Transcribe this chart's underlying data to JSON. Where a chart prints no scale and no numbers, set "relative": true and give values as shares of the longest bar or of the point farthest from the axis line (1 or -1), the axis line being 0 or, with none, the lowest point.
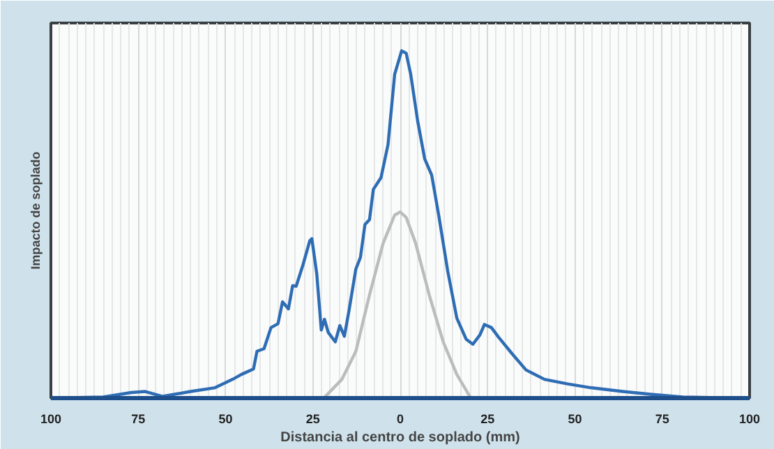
{
  "chart_data": {
    "type": "line",
    "relative": true,
    "xlabel": "Distancia al centro de soplado (mm)",
    "ylabel": "Impacto de soplado",
    "xlim": [
      -100,
      100
    ],
    "xticks": [
      {
        "value": -100,
        "label": "100"
      },
      {
        "value": -75,
        "label": "75"
      },
      {
        "value": -50,
        "label": "50"
      },
      {
        "value": -25,
        "label": "25"
      },
      0,
      25,
      50,
      75,
      100
    ],
    "grid": "x",
    "marker": "none",
    "line_style": "solid",
    "series": [
      {
        "color": "#2e6db4",
        "x": [
          -100,
          -85,
          -77,
          -73,
          -68,
          -60,
          -53,
          -48,
          -45.5,
          -42,
          -41,
          -39,
          -37,
          -35,
          -33.7,
          -32,
          -30.8,
          -29.8,
          -27.8,
          -25.9,
          -25.3,
          -23.9,
          -22.6,
          -21.7,
          -20.6,
          -18.6,
          -17.3,
          -16,
          -14.7,
          -12.7,
          -11.4,
          -10.1,
          -8.8,
          -7.7,
          -5.5,
          -3.5,
          -1.6,
          0.4,
          1.7,
          3,
          5,
          7,
          9,
          11,
          13.6,
          16.2,
          18.9,
          20.8,
          22.8,
          24.1,
          26.1,
          28.1,
          32,
          36,
          41.3,
          47.9,
          54.5,
          63.7,
          71.6,
          80.9,
          100
        ],
        "values": [
          0,
          0.003,
          0.016,
          0.019,
          0.005,
          0.019,
          0.03,
          0.054,
          0.068,
          0.084,
          0.135,
          0.142,
          0.203,
          0.214,
          0.277,
          0.257,
          0.324,
          0.322,
          0.385,
          0.453,
          0.459,
          0.358,
          0.196,
          0.227,
          0.189,
          0.162,
          0.209,
          0.178,
          0.25,
          0.372,
          0.405,
          0.5,
          0.514,
          0.601,
          0.635,
          0.73,
          0.932,
          1.0,
          0.993,
          0.932,
          0.797,
          0.689,
          0.642,
          0.527,
          0.365,
          0.23,
          0.169,
          0.155,
          0.182,
          0.212,
          0.203,
          0.176,
          0.128,
          0.081,
          0.054,
          0.041,
          0.03,
          0.019,
          0.011,
          0.003,
          0
        ]
      },
      {
        "color": "#bcbcbc",
        "x": [
          -21.9,
          -16.7,
          -12.7,
          -8.8,
          -4.9,
          -1.6,
          0,
          1.7,
          4.4,
          8.3,
          12.3,
          16.2,
          20.2
        ],
        "values": [
          0,
          0.054,
          0.135,
          0.297,
          0.446,
          0.527,
          0.536,
          0.52,
          0.446,
          0.297,
          0.162,
          0.068,
          0
        ]
      }
    ]
  }
}
